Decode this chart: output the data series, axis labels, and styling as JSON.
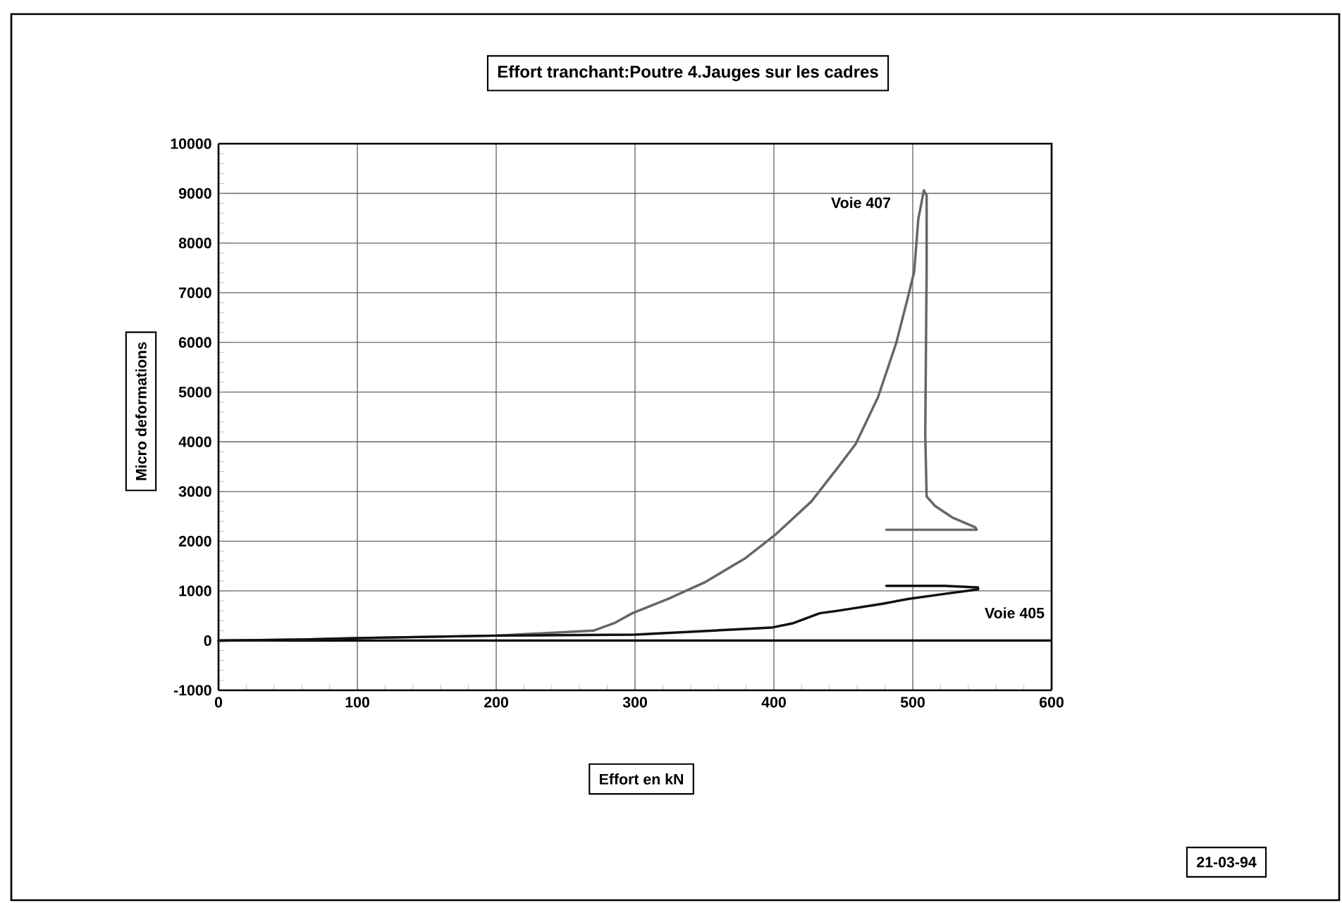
{
  "chart_data": {
    "type": "line",
    "title": "Effort tranchant:Poutre 4.Jauges sur les cadres",
    "xlabel": "Effort en kN",
    "ylabel": "Micro deformations",
    "annotations": [
      "21-03-94"
    ],
    "xlim": [
      0,
      600
    ],
    "ylim": [
      -1000,
      10000
    ],
    "xticks": [
      0,
      100,
      200,
      300,
      400,
      500,
      600
    ],
    "yticks": [
      -1000,
      0,
      1000,
      2000,
      3000,
      4000,
      5000,
      6000,
      7000,
      8000,
      9000,
      10000
    ],
    "grid": true,
    "legend": false,
    "marker": "none",
    "line_style": "solid",
    "series": [
      {
        "name": "Voie 407",
        "color": "#666666",
        "x": [
          0,
          60,
          100,
          200,
          270,
          285,
          298,
          324,
          350,
          379,
          401,
          427,
          446,
          459,
          475,
          488,
          496,
          501,
          504,
          508,
          510,
          510,
          509,
          510,
          516,
          529,
          545,
          546,
          481
        ],
        "values": [
          0,
          20,
          50,
          100,
          200,
          350,
          550,
          840,
          1170,
          1650,
          2130,
          2800,
          3480,
          3960,
          4900,
          5980,
          6850,
          7420,
          8480,
          9060,
          8960,
          7500,
          4150,
          2900,
          2710,
          2470,
          2280,
          2230,
          2230
        ]
      },
      {
        "name": "Voie 405",
        "color": "#111111",
        "x": [
          0,
          60,
          100,
          200,
          300,
          398,
          414,
          433,
          446,
          478,
          497,
          523,
          547,
          547,
          523,
          481
        ],
        "values": [
          0,
          20,
          50,
          100,
          120,
          260,
          350,
          550,
          600,
          740,
          840,
          940,
          1030,
          1070,
          1100,
          1100
        ]
      }
    ]
  }
}
